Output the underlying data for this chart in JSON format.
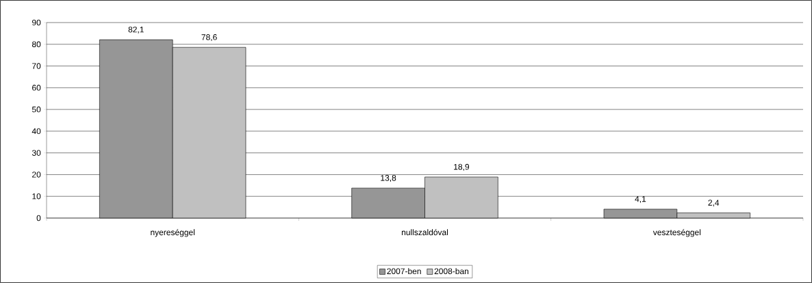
{
  "chart_data": {
    "type": "bar",
    "categories": [
      "nyereséggel",
      "nullszaldóval",
      "veszteséggel"
    ],
    "series": [
      {
        "name": "2007-ben",
        "color": "#969696",
        "values": [
          82.1,
          13.8,
          4.1
        ],
        "value_labels": [
          "82,1",
          "13,8",
          "4,1"
        ]
      },
      {
        "name": "2008-ban",
        "color": "#c0c0c0",
        "values": [
          78.6,
          18.9,
          2.4
        ],
        "value_labels": [
          "78,6",
          "18,9",
          "2,4"
        ]
      }
    ],
    "ylim": [
      0,
      90
    ],
    "yticks": [
      0,
      10,
      20,
      30,
      40,
      50,
      60,
      70,
      80,
      90
    ],
    "grid": "y",
    "legend": "bottom"
  }
}
